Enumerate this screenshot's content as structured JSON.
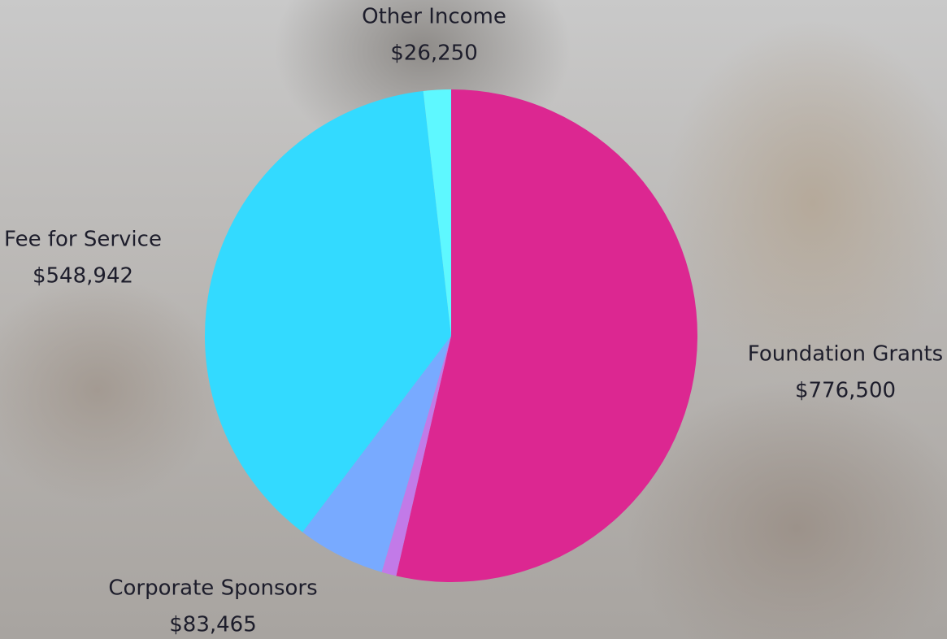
{
  "chart_data": {
    "type": "pie",
    "categories": [
      "Foundation Grants",
      null,
      "Corporate Sponsors",
      "Fee for Service",
      "Other Income"
    ],
    "values": [
      776500,
      14000,
      83465,
      548942,
      26250
    ],
    "value_labels": [
      "$776,500",
      null,
      "$83,465",
      "$548,942",
      "$26,250"
    ],
    "colors": [
      "#dc2791",
      "#c27ae8",
      "#78aaff",
      "#33daff",
      "#5ef8ff"
    ]
  }
}
